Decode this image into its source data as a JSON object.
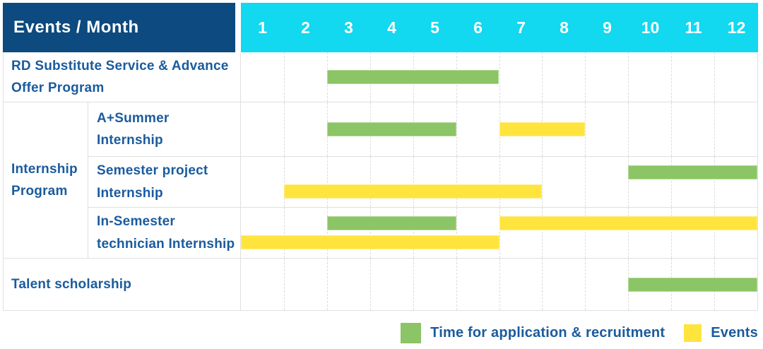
{
  "colors": {
    "header_bg": "#0C4A7F",
    "months_header_bg": "#12D8F0",
    "bar_green": "#8BC565",
    "bar_yellow": "#FFE43E",
    "label_text_blue": "#1A5B9E",
    "header_text": "#FFFFFF",
    "grid_line": "#E0E0E0"
  },
  "chart_data": {
    "type": "gantt",
    "corner_header": "Events / Month",
    "x_unit": "month",
    "x_ticks": [
      "1",
      "2",
      "3",
      "4",
      "5",
      "6",
      "7",
      "8",
      "9",
      "10",
      "11",
      "12"
    ],
    "x_range": [
      1,
      12
    ],
    "group_label": "Internship Program",
    "rows": [
      {
        "label": "RD Substitute Service & Advance Offer Program",
        "group": null,
        "bars": [
          {
            "series": "Time for application & recruitment",
            "color": "green",
            "start_month": 3,
            "end_month": 6,
            "lane": "center"
          }
        ]
      },
      {
        "label": "A+Summer Internship",
        "group": "Internship Program",
        "bars": [
          {
            "series": "Time for application & recruitment",
            "color": "green",
            "start_month": 3,
            "end_month": 5,
            "lane": "center"
          },
          {
            "series": "Events",
            "color": "yellow",
            "start_month": 7,
            "end_month": 8,
            "lane": "center"
          }
        ]
      },
      {
        "label": "Semester project Internship",
        "group": "Internship Program",
        "bars": [
          {
            "series": "Time for application & recruitment",
            "color": "green",
            "start_month": 10,
            "end_month": 12,
            "lane": "top"
          },
          {
            "series": "Events",
            "color": "yellow",
            "start_month": 2,
            "end_month": 7,
            "lane": "bottom"
          }
        ]
      },
      {
        "label": "In-Semester technician Internship",
        "group": "Internship Program",
        "bars": [
          {
            "series": "Time for application & recruitment",
            "color": "green",
            "start_month": 3,
            "end_month": 5,
            "lane": "top"
          },
          {
            "series": "Events",
            "color": "yellow",
            "start_month": 7,
            "end_month": 12,
            "lane": "top"
          },
          {
            "series": "Events",
            "color": "yellow",
            "start_month": 1,
            "end_month": 6,
            "lane": "bottom"
          }
        ]
      },
      {
        "label": "Talent scholarship",
        "group": null,
        "bars": [
          {
            "series": "Time for application & recruitment",
            "color": "green",
            "start_month": 10,
            "end_month": 12,
            "lane": "center"
          }
        ]
      }
    ],
    "legend": [
      {
        "color": "green",
        "hex": "#8BC565",
        "label": "Time for application & recruitment"
      },
      {
        "color": "yellow",
        "hex": "#FFE43E",
        "label": "Events"
      }
    ],
    "legend_position": "bottom-right",
    "grid": "vertical-dashed-month-lines"
  }
}
